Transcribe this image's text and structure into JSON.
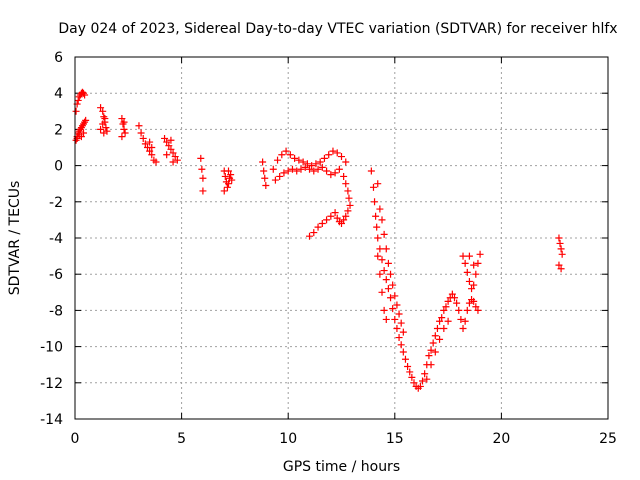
{
  "chart_data": {
    "type": "scatter",
    "title": "Day 024 of 2023, Sidereal Day-to-day VTEC variation (SDTVAR) for receiver hlfx",
    "xlabel": "GPS time / hours",
    "ylabel": "SDTVAR / TECUs",
    "xlim": [
      0,
      25
    ],
    "ylim": [
      -14,
      6
    ],
    "xticks": [
      0,
      5,
      10,
      15,
      20,
      25
    ],
    "yticks": [
      6,
      4,
      2,
      0,
      -2,
      -4,
      -6,
      -8,
      -10,
      -12,
      -14
    ],
    "grid": true,
    "marker": "plus",
    "color": "#ff0000",
    "series": [
      {
        "name": "SDTVAR",
        "points": [
          [
            0.05,
            3.0
          ],
          [
            0.1,
            3.4
          ],
          [
            0.15,
            3.6
          ],
          [
            0.2,
            3.8
          ],
          [
            0.25,
            3.9
          ],
          [
            0.3,
            4.0
          ],
          [
            0.35,
            4.05
          ],
          [
            0.4,
            4.0
          ],
          [
            0.45,
            3.9
          ],
          [
            0.05,
            1.4
          ],
          [
            0.1,
            1.6
          ],
          [
            0.15,
            1.8
          ],
          [
            0.2,
            1.9
          ],
          [
            0.25,
            2.0
          ],
          [
            0.3,
            2.1
          ],
          [
            0.35,
            2.2
          ],
          [
            0.4,
            2.3
          ],
          [
            0.45,
            2.4
          ],
          [
            0.5,
            2.5
          ],
          [
            0.1,
            1.5
          ],
          [
            0.2,
            1.7
          ],
          [
            0.3,
            1.6
          ],
          [
            0.4,
            1.8
          ],
          [
            1.2,
            3.2
          ],
          [
            1.3,
            3.0
          ],
          [
            1.35,
            2.7
          ],
          [
            1.4,
            2.4
          ],
          [
            1.45,
            2.1
          ],
          [
            1.5,
            1.9
          ],
          [
            1.2,
            2.0
          ],
          [
            1.3,
            2.3
          ],
          [
            1.4,
            2.6
          ],
          [
            1.35,
            1.8
          ],
          [
            2.2,
            2.6
          ],
          [
            2.25,
            2.3
          ],
          [
            2.3,
            2.0
          ],
          [
            2.35,
            1.8
          ],
          [
            2.2,
            1.6
          ],
          [
            2.3,
            2.4
          ],
          [
            3.0,
            2.2
          ],
          [
            3.1,
            1.8
          ],
          [
            3.2,
            1.5
          ],
          [
            3.3,
            1.2
          ],
          [
            3.4,
            1.0
          ],
          [
            3.5,
            0.8
          ],
          [
            3.6,
            0.6
          ],
          [
            3.7,
            0.3
          ],
          [
            3.8,
            0.2
          ],
          [
            3.5,
            1.3
          ],
          [
            3.6,
            1.0
          ],
          [
            4.2,
            1.5
          ],
          [
            4.3,
            1.3
          ],
          [
            4.4,
            1.1
          ],
          [
            4.5,
            0.9
          ],
          [
            4.6,
            0.7
          ],
          [
            4.7,
            0.5
          ],
          [
            4.8,
            0.3
          ],
          [
            4.3,
            0.6
          ],
          [
            4.5,
            1.4
          ],
          [
            4.6,
            0.2
          ],
          [
            5.9,
            0.4
          ],
          [
            5.95,
            -0.2
          ],
          [
            6.0,
            -0.7
          ],
          [
            6.0,
            -1.4
          ],
          [
            7.0,
            -0.3
          ],
          [
            7.05,
            -0.6
          ],
          [
            7.1,
            -0.9
          ],
          [
            7.15,
            -1.2
          ],
          [
            7.2,
            -1.0
          ],
          [
            7.25,
            -0.7
          ],
          [
            7.3,
            -0.5
          ],
          [
            7.35,
            -0.8
          ],
          [
            7.0,
            -1.4
          ],
          [
            7.2,
            -0.3
          ],
          [
            8.8,
            0.2
          ],
          [
            8.85,
            -0.3
          ],
          [
            8.9,
            -0.7
          ],
          [
            8.95,
            -1.1
          ],
          [
            9.3,
            -0.2
          ],
          [
            9.5,
            0.3
          ],
          [
            9.7,
            0.6
          ],
          [
            9.9,
            0.8
          ],
          [
            10.1,
            0.6
          ],
          [
            10.3,
            0.4
          ],
          [
            10.5,
            0.3
          ],
          [
            10.7,
            0.2
          ],
          [
            10.9,
            0.1
          ],
          [
            11.1,
            0.0
          ],
          [
            11.3,
            0.1
          ],
          [
            11.5,
            0.2
          ],
          [
            11.7,
            0.4
          ],
          [
            11.9,
            0.6
          ],
          [
            12.1,
            0.8
          ],
          [
            12.3,
            0.7
          ],
          [
            12.5,
            0.5
          ],
          [
            12.7,
            0.2
          ],
          [
            9.4,
            -0.8
          ],
          [
            9.6,
            -0.6
          ],
          [
            9.8,
            -0.4
          ],
          [
            10.0,
            -0.3
          ],
          [
            10.2,
            -0.2
          ],
          [
            10.4,
            -0.3
          ],
          [
            10.6,
            -0.2
          ],
          [
            10.8,
            -0.1
          ],
          [
            11.0,
            -0.2
          ],
          [
            11.2,
            -0.3
          ],
          [
            11.4,
            -0.2
          ],
          [
            11.6,
            -0.1
          ],
          [
            11.8,
            -0.3
          ],
          [
            12.0,
            -0.5
          ],
          [
            12.2,
            -0.4
          ],
          [
            12.4,
            -0.2
          ],
          [
            12.6,
            -0.6
          ],
          [
            12.7,
            -1.0
          ],
          [
            12.8,
            -1.4
          ],
          [
            12.85,
            -1.8
          ],
          [
            12.9,
            -2.2
          ],
          [
            12.8,
            -2.5
          ],
          [
            12.7,
            -2.8
          ],
          [
            12.6,
            -3.0
          ],
          [
            12.5,
            -3.2
          ],
          [
            12.4,
            -3.1
          ],
          [
            12.3,
            -2.9
          ],
          [
            11.0,
            -3.9
          ],
          [
            11.2,
            -3.7
          ],
          [
            11.4,
            -3.4
          ],
          [
            11.6,
            -3.2
          ],
          [
            11.8,
            -3.0
          ],
          [
            12.0,
            -2.8
          ],
          [
            12.2,
            -2.6
          ],
          [
            13.9,
            -0.3
          ],
          [
            14.0,
            -1.2
          ],
          [
            14.05,
            -2.0
          ],
          [
            14.1,
            -2.8
          ],
          [
            14.15,
            -3.4
          ],
          [
            14.2,
            -4.0
          ],
          [
            14.3,
            -4.6
          ],
          [
            14.4,
            -5.2
          ],
          [
            14.5,
            -5.8
          ],
          [
            14.6,
            -6.3
          ],
          [
            14.7,
            -6.8
          ],
          [
            14.8,
            -7.3
          ],
          [
            14.9,
            -7.9
          ],
          [
            15.0,
            -8.5
          ],
          [
            15.1,
            -9.0
          ],
          [
            15.2,
            -9.5
          ],
          [
            15.3,
            -9.9
          ],
          [
            15.4,
            -10.3
          ],
          [
            15.5,
            -10.7
          ],
          [
            15.6,
            -11.1
          ],
          [
            15.7,
            -11.4
          ],
          [
            15.8,
            -11.7
          ],
          [
            15.9,
            -12.0
          ],
          [
            16.0,
            -12.2
          ],
          [
            16.1,
            -12.3
          ],
          [
            16.2,
            -12.2
          ],
          [
            16.3,
            -11.9
          ],
          [
            16.4,
            -11.5
          ],
          [
            16.5,
            -11.0
          ],
          [
            16.6,
            -10.5
          ],
          [
            16.7,
            -10.2
          ],
          [
            16.8,
            -9.8
          ],
          [
            16.9,
            -9.4
          ],
          [
            17.0,
            -9.0
          ],
          [
            17.1,
            -8.6
          ],
          [
            17.2,
            -8.4
          ],
          [
            17.3,
            -8.0
          ],
          [
            17.4,
            -7.8
          ],
          [
            17.5,
            -7.5
          ],
          [
            17.6,
            -7.3
          ],
          [
            17.7,
            -7.1
          ],
          [
            17.8,
            -7.3
          ],
          [
            17.9,
            -7.6
          ],
          [
            18.0,
            -8.0
          ],
          [
            18.1,
            -8.5
          ],
          [
            18.2,
            -9.0
          ],
          [
            18.3,
            -8.6
          ],
          [
            18.4,
            -8.0
          ],
          [
            18.5,
            -7.6
          ],
          [
            18.6,
            -7.4
          ],
          [
            18.7,
            -7.5
          ],
          [
            18.8,
            -7.8
          ],
          [
            18.9,
            -8.0
          ],
          [
            14.2,
            -1.0
          ],
          [
            14.3,
            -2.4
          ],
          [
            14.4,
            -3.0
          ],
          [
            14.5,
            -3.8
          ],
          [
            14.6,
            -4.6
          ],
          [
            14.7,
            -5.4
          ],
          [
            14.8,
            -6.0
          ],
          [
            14.9,
            -6.6
          ],
          [
            15.0,
            -7.2
          ],
          [
            15.1,
            -7.7
          ],
          [
            15.2,
            -8.2
          ],
          [
            15.3,
            -8.7
          ],
          [
            15.4,
            -9.2
          ],
          [
            14.2,
            -5.0
          ],
          [
            14.3,
            -6.0
          ],
          [
            14.4,
            -7.0
          ],
          [
            14.5,
            -8.0
          ],
          [
            14.6,
            -8.5
          ],
          [
            16.5,
            -11.8
          ],
          [
            16.7,
            -11.0
          ],
          [
            16.9,
            -10.3
          ],
          [
            17.1,
            -9.6
          ],
          [
            17.3,
            -9.0
          ],
          [
            17.5,
            -8.6
          ],
          [
            18.2,
            -5.0
          ],
          [
            18.3,
            -5.4
          ],
          [
            18.4,
            -5.9
          ],
          [
            18.5,
            -6.4
          ],
          [
            18.6,
            -6.8
          ],
          [
            18.7,
            -6.6
          ],
          [
            18.8,
            -6.0
          ],
          [
            18.9,
            -5.4
          ],
          [
            19.0,
            -4.9
          ],
          [
            18.5,
            -5.0
          ],
          [
            18.7,
            -5.5
          ],
          [
            22.7,
            -4.0
          ],
          [
            22.75,
            -4.3
          ],
          [
            22.8,
            -4.6
          ],
          [
            22.85,
            -4.9
          ],
          [
            22.7,
            -5.5
          ],
          [
            22.8,
            -5.7
          ]
        ]
      }
    ]
  }
}
